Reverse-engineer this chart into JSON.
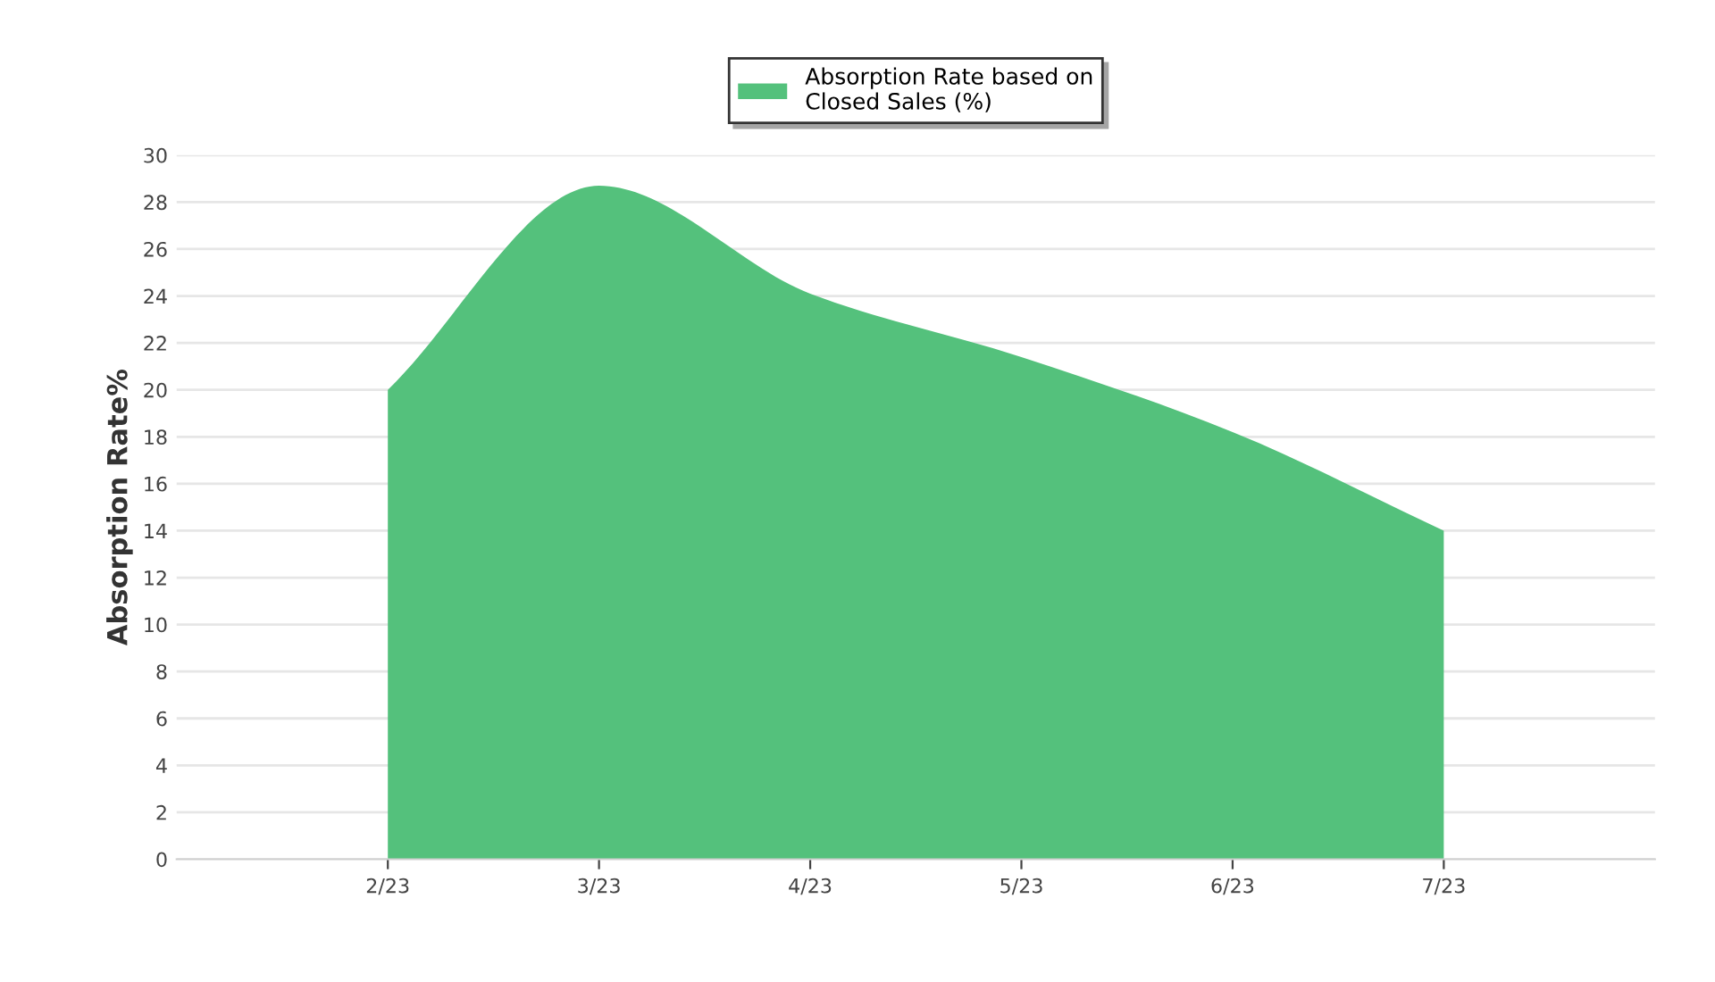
{
  "chart_data": {
    "type": "area",
    "ylabel": "Absorption Rate%",
    "categories": [
      "2/23",
      "3/23",
      "4/23",
      "5/23",
      "6/23",
      "7/23"
    ],
    "series": [
      {
        "name": "Absorption Rate based on\nClosed Sales (%)",
        "color": "#54c17c",
        "values": [
          20,
          28.7,
          24.1,
          21.4,
          18.2,
          14.0
        ]
      }
    ],
    "ylim": [
      0,
      30
    ],
    "yticks": [
      0,
      2,
      4,
      6,
      8,
      10,
      12,
      14,
      16,
      18,
      20,
      22,
      24,
      26,
      28,
      30
    ],
    "grid": "y",
    "legend": "top"
  }
}
